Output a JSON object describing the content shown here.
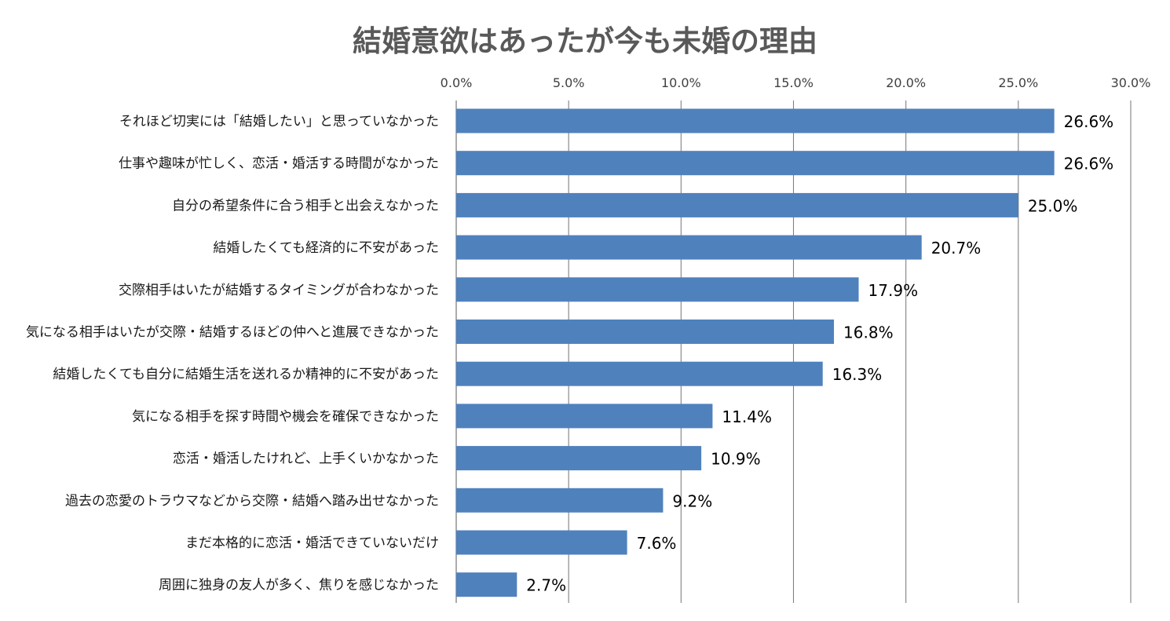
{
  "chart_data": {
    "type": "bar",
    "orientation": "horizontal",
    "title": "結婚意欲はあったが今も未婚の理由",
    "xlim": [
      0,
      30
    ],
    "x_ticks": [
      "0.0%",
      "5.0%",
      "10.0%",
      "15.0%",
      "20.0%",
      "25.0%",
      "30.0%"
    ],
    "x_tick_values": [
      0,
      5,
      10,
      15,
      20,
      25,
      30
    ],
    "x_axis_position": "top",
    "grid": true,
    "legend": "none",
    "bar_color": "#4F81BD",
    "categories": [
      "それほど切実には「結婚したい」と思っていなかった",
      "仕事や趣味が忙しく、恋活・婚活する時間がなかった",
      "自分の希望条件に合う相手と出会えなかった",
      "結婚したくても経済的に不安があった",
      "交際相手はいたが結婚するタイミングが合わなかった",
      "気になる相手はいたが交際・結婚するほどの仲へと進展できなかった",
      "結婚したくても自分に結婚生活を送れるか精神的に不安があった",
      "気になる相手を探す時間や機会を確保できなかった",
      "恋活・婚活したけれど、上手くいかなかった",
      "過去の恋愛のトラウマなどから交際・結婚へ踏み出せなかった",
      "まだ本格的に恋活・婚活できていないだけ",
      "周囲に独身の友人が多く、焦りを感じなかった"
    ],
    "values": [
      26.6,
      26.6,
      25.0,
      20.7,
      17.9,
      16.8,
      16.3,
      11.4,
      10.9,
      9.2,
      7.6,
      2.7
    ],
    "value_labels": [
      "26.6%",
      "26.6%",
      "25.0%",
      "20.7%",
      "17.9%",
      "16.8%",
      "16.3%",
      "11.4%",
      "10.9%",
      "9.2%",
      "7.6%",
      "2.7%"
    ]
  }
}
